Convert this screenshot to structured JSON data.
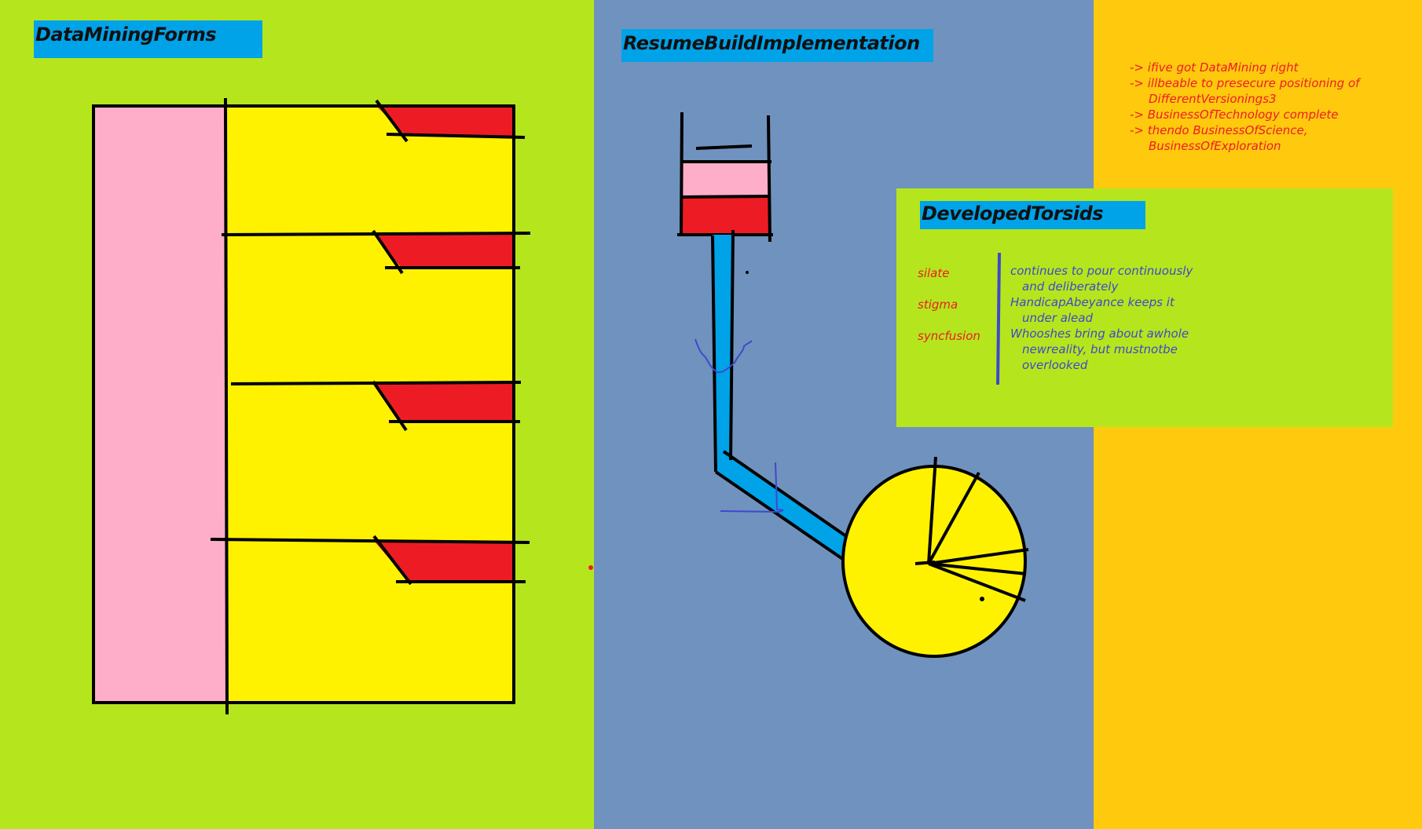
{
  "colors": {
    "left_bg": "#b5e61d",
    "middle_bg": "#7092be",
    "right_bg": "#ffc90e",
    "title_bg": "#00a2e8",
    "pink": "#ffaec9",
    "yellow": "#fff200",
    "red": "#ed1c24",
    "blue_ink": "#3f48cc"
  },
  "left_panel": {
    "title": "DataMiningForms"
  },
  "middle_panel": {
    "title": "ResumeBuildImplementation"
  },
  "right_panel": {
    "notes": [
      {
        "text": "-> ifive got DataMining right",
        "indent": false
      },
      {
        "text": "-> illbeable to presecure positioning of",
        "indent": false
      },
      {
        "text": "DifferentVersionings3",
        "indent": true
      },
      {
        "text": "-> BusinessOfTechnology complete",
        "indent": false
      },
      {
        "text": "-> thendo BusinessOfScience,",
        "indent": false
      },
      {
        "text": "BusinessOfExploration",
        "indent": true
      }
    ]
  },
  "developed_torsids": {
    "title": "DevelopedTorsids",
    "terms": [
      {
        "term": "silate",
        "definition": [
          "continues to pour continuously",
          "and deliberately"
        ]
      },
      {
        "term": "stigma",
        "definition": [
          "HandicapAbeyance keeps it",
          "under alead"
        ]
      },
      {
        "term": "syncfusion",
        "definition": [
          "Whooshes bring about awhole",
          "newreality, but mustnotbe",
          "overlooked"
        ]
      }
    ]
  }
}
